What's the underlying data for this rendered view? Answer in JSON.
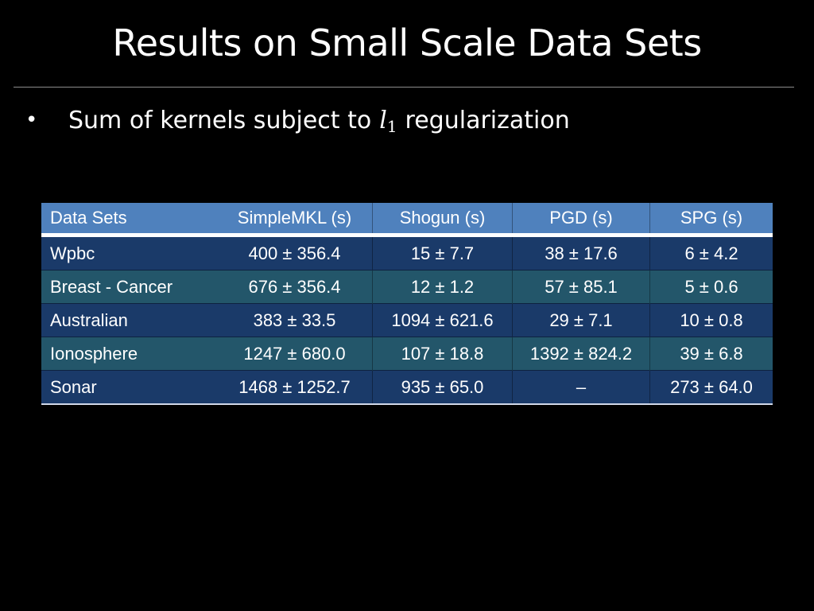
{
  "slide": {
    "title": "Results on Small Scale Data Sets",
    "bullet": {
      "marker": "•",
      "text_before": "Sum of kernels subject to",
      "math_var": "l",
      "math_sub": "1",
      "text_after": "regularization"
    }
  },
  "table": {
    "headers": {
      "dataset": "Data Sets",
      "simplemkl": "SimpleMKL (s)",
      "shogun": "Shogun (s)",
      "pgd": "PGD (s)",
      "spg": "SPG (s)"
    },
    "rows": [
      {
        "dataset": "Wpbc",
        "simplemkl": "400 ± 356.4",
        "shogun": "15 ± 7.7",
        "pgd": "38 ± 17.6",
        "spg": "6 ± 4.2"
      },
      {
        "dataset": "Breast - Cancer",
        "simplemkl": "676 ± 356.4",
        "shogun": "12 ± 1.2",
        "pgd": "57 ± 85.1",
        "spg": "5 ± 0.6"
      },
      {
        "dataset": "Australian",
        "simplemkl": "383 ± 33.5",
        "shogun": "1094 ± 621.6",
        "pgd": "29 ± 7.1",
        "spg": "10 ± 0.8"
      },
      {
        "dataset": "Ionosphere",
        "simplemkl": "1247 ± 680.0",
        "shogun": "107 ± 18.8",
        "pgd": "1392 ± 824.2",
        "spg": "39 ± 6.8"
      },
      {
        "dataset": "Sonar",
        "simplemkl": "1468 ± 1252.7",
        "shogun": "935 ± 65.0",
        "pgd": "–",
        "spg": "273 ± 64.0"
      }
    ]
  },
  "colors": {
    "background": "#000000",
    "header_fill": "#4f81bd",
    "row_blue": "#1a3a69",
    "row_teal": "#23566a",
    "text": "#ffffff"
  }
}
